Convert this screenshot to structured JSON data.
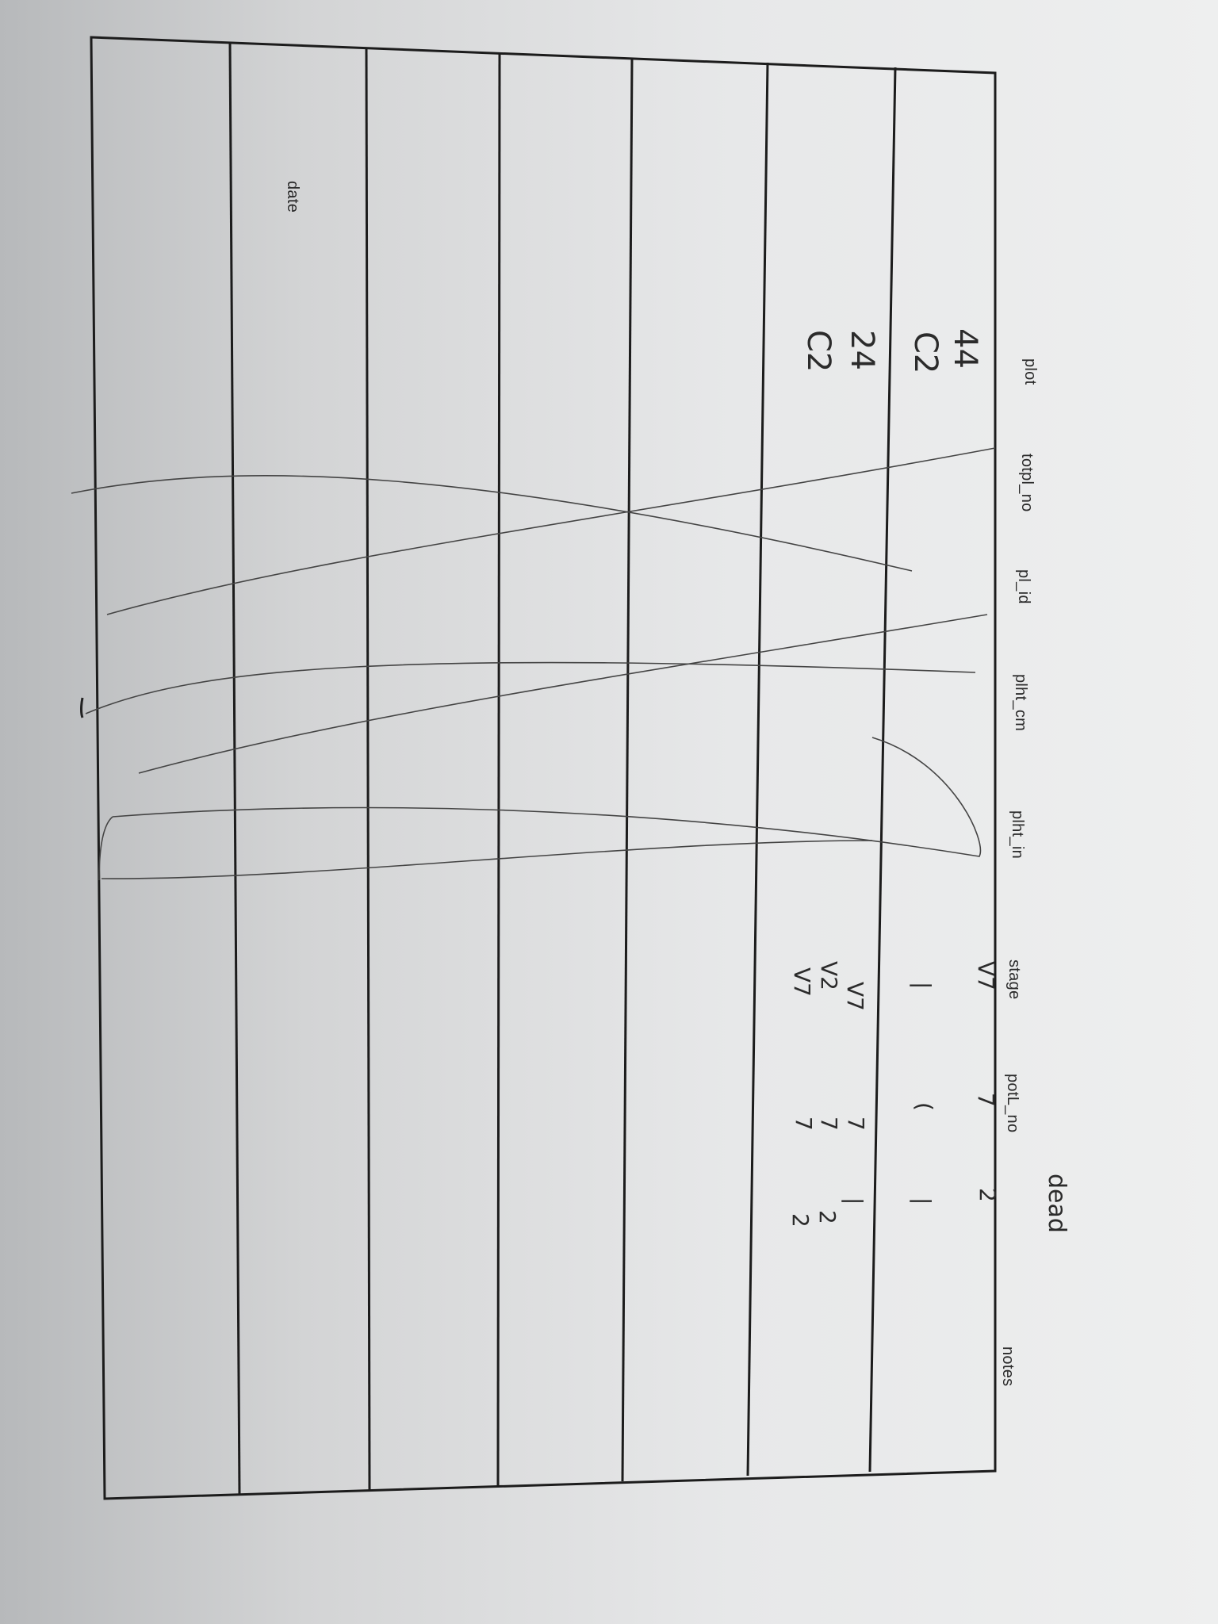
{
  "columns": [
    "date",
    "plot",
    "totpl_no",
    "pl_id",
    "plht_cm",
    "plht_in",
    "stage",
    "potL_no",
    "",
    "notes"
  ],
  "handwritten": {
    "plot_values": [
      "44",
      "C2",
      "24",
      "C2"
    ],
    "stage_values": [
      "V7",
      "|",
      "V7",
      "V2",
      "V7"
    ],
    "potl_values": [
      "7",
      "(",
      "7",
      "7",
      "7"
    ],
    "dead_col_values": [
      "2",
      "|",
      "|",
      "2",
      "2"
    ],
    "dead_note": "dead"
  }
}
